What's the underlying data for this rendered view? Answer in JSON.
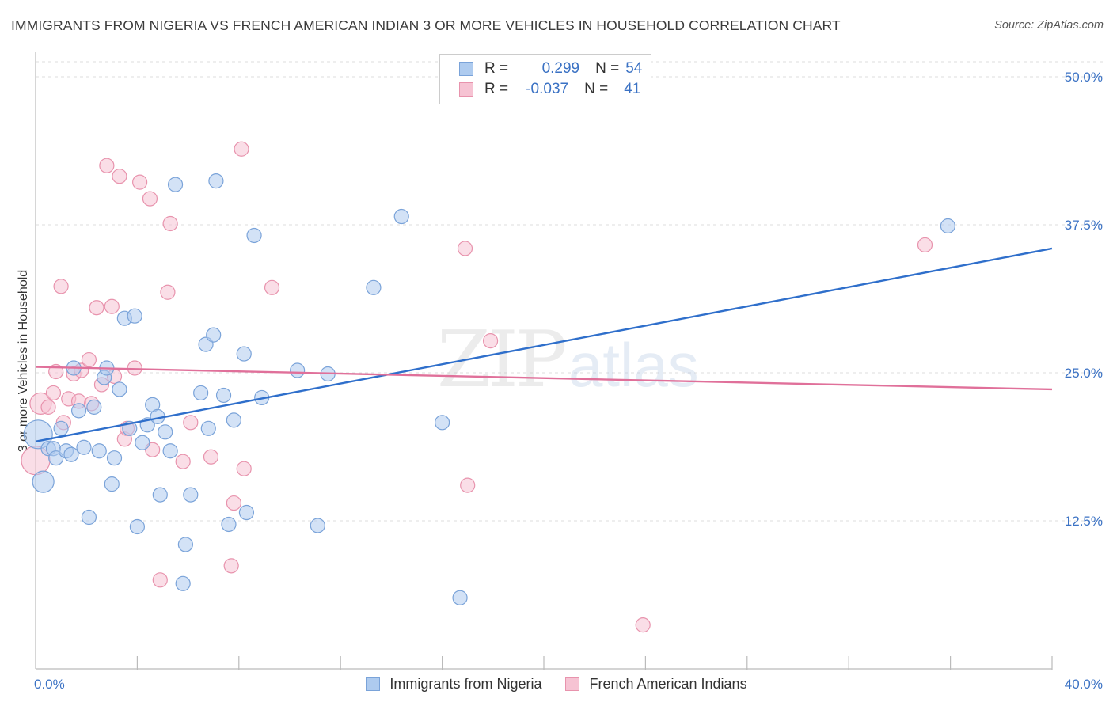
{
  "title": "IMMIGRANTS FROM NIGERIA VS FRENCH AMERICAN INDIAN 3 OR MORE VEHICLES IN HOUSEHOLD CORRELATION CHART",
  "source": "Source: ZipAtlas.com",
  "watermark": {
    "zip": "ZIP",
    "atlas": "atlas"
  },
  "legend": {
    "rows": [
      {
        "r_key": "R =",
        "r_val": "0.299",
        "n_key": "N =",
        "n_val": "54"
      },
      {
        "r_key": "R =",
        "r_val": "-0.037",
        "n_key": "N =",
        "n_val": "41"
      }
    ]
  },
  "colors": {
    "blue_fill": "#aecbef",
    "blue_stroke": "#7aa3d9",
    "blue_line": "#2f6fcb",
    "pink_fill": "#f6c3d3",
    "pink_stroke": "#e893ad",
    "pink_line": "#e0709a",
    "tick_label": "#3b72c4",
    "grid": "#dddddd"
  },
  "chart_data": {
    "type": "scatter",
    "title": "IMMIGRANTS FROM NIGERIA VS FRENCH AMERICAN INDIAN 3 OR MORE VEHICLES IN HOUSEHOLD CORRELATION CHART",
    "xlabel": "",
    "ylabel": "3 or more Vehicles in Household",
    "xlim": [
      0,
      40
    ],
    "ylim": [
      0,
      52
    ],
    "x_tick_labels": [
      "0.0%",
      "40.0%"
    ],
    "y_ticks": [
      12.5,
      25.0,
      37.5,
      50.0
    ],
    "y_tick_labels": [
      "12.5%",
      "25.0%",
      "37.5%",
      "50.0%"
    ],
    "grid": true,
    "legend_position": "top-center",
    "series": [
      {
        "name": "Immigrants from Nigeria",
        "color": "#aecbef",
        "trend": [
          [
            0,
            19.2
          ],
          [
            40,
            35.5
          ]
        ],
        "points": [
          [
            0.1,
            19.8,
            2
          ],
          [
            0.3,
            15.8,
            1.5
          ],
          [
            0.5,
            18.6,
            1
          ],
          [
            0.7,
            18.6,
            1
          ],
          [
            0.8,
            17.8,
            1
          ],
          [
            1.0,
            20.3,
            1
          ],
          [
            1.2,
            18.4,
            1
          ],
          [
            1.4,
            18.1,
            1
          ],
          [
            1.5,
            25.4,
            1
          ],
          [
            1.7,
            21.8,
            1
          ],
          [
            1.9,
            18.7,
            1
          ],
          [
            2.1,
            12.8,
            1
          ],
          [
            2.3,
            22.1,
            1
          ],
          [
            2.5,
            18.4,
            1
          ],
          [
            2.7,
            24.6,
            1
          ],
          [
            2.8,
            25.4,
            1
          ],
          [
            3.0,
            15.6,
            1
          ],
          [
            3.1,
            17.8,
            1
          ],
          [
            3.3,
            23.6,
            1
          ],
          [
            3.5,
            29.6,
            1
          ],
          [
            3.7,
            20.3,
            1
          ],
          [
            3.9,
            29.8,
            1
          ],
          [
            4.0,
            12.0,
            1
          ],
          [
            4.2,
            19.1,
            1
          ],
          [
            4.4,
            20.6,
            1
          ],
          [
            4.6,
            22.3,
            1
          ],
          [
            4.8,
            21.3,
            1
          ],
          [
            4.9,
            14.7,
            1
          ],
          [
            5.1,
            20.0,
            1
          ],
          [
            5.3,
            18.4,
            1
          ],
          [
            5.5,
            40.9,
            1
          ],
          [
            5.8,
            7.2,
            1
          ],
          [
            5.9,
            10.5,
            1
          ],
          [
            6.1,
            14.7,
            1
          ],
          [
            6.5,
            23.3,
            1
          ],
          [
            6.7,
            27.4,
            1
          ],
          [
            6.8,
            20.3,
            1
          ],
          [
            7.0,
            28.2,
            1
          ],
          [
            7.1,
            41.2,
            1
          ],
          [
            7.4,
            23.1,
            1
          ],
          [
            7.6,
            12.2,
            1
          ],
          [
            7.8,
            21.0,
            1
          ],
          [
            8.2,
            26.6,
            1
          ],
          [
            8.3,
            13.2,
            1
          ],
          [
            8.6,
            36.6,
            1
          ],
          [
            8.9,
            22.9,
            1
          ],
          [
            10.3,
            25.2,
            1
          ],
          [
            11.1,
            12.1,
            1
          ],
          [
            11.5,
            24.9,
            1
          ],
          [
            13.3,
            32.2,
            1
          ],
          [
            14.4,
            38.2,
            1
          ],
          [
            16.0,
            20.8,
            1
          ],
          [
            16.7,
            6.0,
            1
          ],
          [
            35.9,
            37.4,
            1
          ]
        ]
      },
      {
        "name": "French American Indians",
        "color": "#f6c3d3",
        "trend": [
          [
            0,
            25.5
          ],
          [
            40,
            23.6
          ]
        ],
        "points": [
          [
            0.0,
            17.6,
            2
          ],
          [
            0.2,
            22.4,
            1.5
          ],
          [
            0.5,
            22.1,
            1
          ],
          [
            0.7,
            23.3,
            1
          ],
          [
            0.8,
            25.1,
            1
          ],
          [
            1.0,
            32.3,
            1
          ],
          [
            1.1,
            20.8,
            1
          ],
          [
            1.3,
            22.8,
            1
          ],
          [
            1.5,
            24.9,
            1
          ],
          [
            1.7,
            22.6,
            1
          ],
          [
            1.8,
            25.2,
            1
          ],
          [
            2.1,
            26.1,
            1
          ],
          [
            2.2,
            22.4,
            1
          ],
          [
            2.4,
            30.5,
            1
          ],
          [
            2.6,
            24.0,
            1
          ],
          [
            2.8,
            42.5,
            1
          ],
          [
            3.0,
            30.6,
            1
          ],
          [
            3.1,
            24.7,
            1
          ],
          [
            3.3,
            41.6,
            1
          ],
          [
            3.5,
            19.4,
            1
          ],
          [
            3.6,
            20.3,
            1
          ],
          [
            3.9,
            25.4,
            1
          ],
          [
            4.1,
            41.1,
            1
          ],
          [
            4.5,
            39.7,
            1
          ],
          [
            4.6,
            18.5,
            1
          ],
          [
            4.9,
            7.5,
            1
          ],
          [
            5.2,
            31.8,
            1
          ],
          [
            5.3,
            37.6,
            1
          ],
          [
            5.8,
            17.5,
            1
          ],
          [
            6.1,
            20.8,
            1
          ],
          [
            6.9,
            17.9,
            1
          ],
          [
            7.7,
            8.7,
            1
          ],
          [
            7.8,
            14.0,
            1
          ],
          [
            8.1,
            43.9,
            1
          ],
          [
            8.2,
            16.9,
            1
          ],
          [
            9.3,
            32.2,
            1
          ],
          [
            16.9,
            35.5,
            1
          ],
          [
            17.0,
            15.5,
            1
          ],
          [
            17.9,
            27.7,
            1
          ],
          [
            23.9,
            3.7,
            1
          ],
          [
            35.0,
            35.8,
            1
          ]
        ]
      }
    ]
  }
}
